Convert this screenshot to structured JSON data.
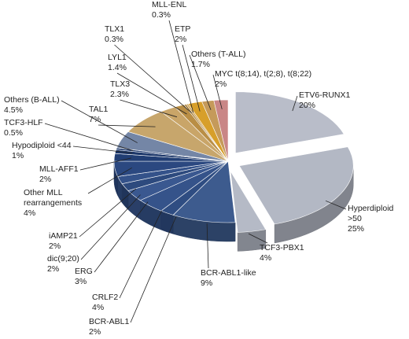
{
  "chart_data": {
    "type": "pie",
    "categories": [
      "ETV6-RUNX1",
      "Hyperdiploid >50",
      "TCF3-PBX1",
      "BCR-ABL1-like",
      "BCR-ABL1",
      "CRLF2",
      "ERG",
      "dic(9;20)",
      "iAMP21",
      "Other MLL rearrangements",
      "MLL-AFF1",
      "Hypodiploid <44",
      "TCF3-HLF",
      "Others (B-ALL)",
      "TAL1",
      "TLX3",
      "LYL1",
      "TLX1",
      "MLL-ENL",
      "ETP",
      "Others (T-ALL)",
      "MYC t(8;14), t(2;8), t(8;22)"
    ],
    "values": [
      20,
      25,
      4,
      9,
      2,
      4,
      3,
      2,
      2,
      4,
      2,
      1,
      0.5,
      4.5,
      7,
      2.3,
      1.4,
      0.3,
      0.3,
      2,
      1.7,
      2
    ],
    "value_labels": [
      "20%",
      "25%",
      "4%",
      "9%",
      "2%",
      "4%",
      "3%",
      "2%",
      "2%",
      "4%",
      "2%",
      "1%",
      "0.5%",
      "4.5%",
      "7%",
      "2.3%",
      "1.4%",
      "0.3%",
      "0.3%",
      "2%",
      "1.7%",
      "2%"
    ],
    "colors": [
      "#b9bdc9",
      "#b3b8c4",
      "#b5bac6",
      "#3d5b8e",
      "#2f4d82",
      "#35538a",
      "#3a5890",
      "#2d4a7e",
      "#34528a",
      "#2b4880",
      "#213e74",
      "#1c376a",
      "#253f72",
      "#7486a6",
      "#c7a66c",
      "#c9a568",
      "#b98e45",
      "#a57b35",
      "#caa055",
      "#d79f2a",
      "#c59a5a",
      "#c98686"
    ]
  }
}
